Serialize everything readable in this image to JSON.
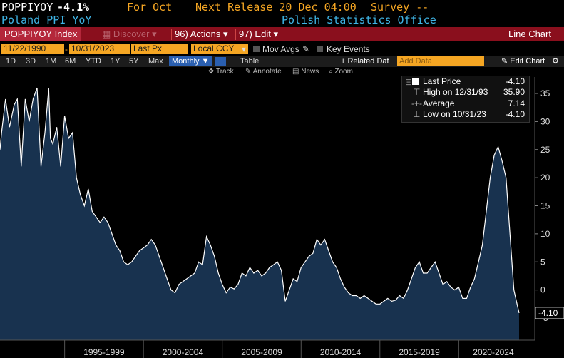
{
  "header": {
    "ticker": "POPPIYOY",
    "change": "-4.1%",
    "period": "For Oct",
    "next_release": "Next Release 20 Dec 04:00",
    "survey": "Survey --",
    "name": "Poland PPI YoY",
    "source": "Polish Statistics Office"
  },
  "toolbar": {
    "index": "POPPIYOY Index",
    "discover": "Discover",
    "discover_num": "",
    "actions_num": "96)",
    "actions": "Actions",
    "edit_num": "97)",
    "edit": "Edit",
    "chart_type": "Line Chart"
  },
  "controls": {
    "start_date": "11/22/1990",
    "end_date": "10/31/2023",
    "field": "Last Px",
    "currency": "Local CCY",
    "mov_avgs": "Mov Avgs",
    "key_events": "Key Events"
  },
  "periods": {
    "items": [
      "1D",
      "3D",
      "1M",
      "6M",
      "YTD",
      "1Y",
      "5Y",
      "Max"
    ],
    "frequency": "Monthly",
    "table": "Table",
    "related": "+ Related Dat",
    "add_data_placeholder": "Add Data",
    "edit_chart": "Edit Chart"
  },
  "tools": {
    "track": "Track",
    "annotate": "Annotate",
    "news": "News",
    "zoom": "Zoom"
  },
  "legend": {
    "last_label": "Last Price",
    "last_value": "-4.10",
    "high_label": "High on 12/31/93",
    "high_value": "35.90",
    "avg_label": "Average",
    "avg_value": "7.14",
    "low_label": "Low on 10/31/23",
    "low_value": "-4.10"
  },
  "colors": {
    "accent_orange": "#f5a623",
    "toolbar_red": "#8a0f1d",
    "title_cyan": "#3fb5e6",
    "area_fill": "#18324f",
    "line": "#ffffff"
  },
  "chart_data": {
    "type": "area",
    "title": "",
    "xlabel": "",
    "ylabel": "",
    "ylim": [
      -5,
      37
    ],
    "yticks": [
      -5,
      0,
      5,
      10,
      15,
      20,
      25,
      30,
      35
    ],
    "x_labels": [
      "1995-1999",
      "2000-2004",
      "2005-2009",
      "2010-2014",
      "2015-2019",
      "2020-2024"
    ],
    "last_label": "-4.10",
    "series": [
      {
        "x": [
          1990.9,
          1991.0,
          1991.25,
          1991.5,
          1991.8,
          1992.0,
          1992.25,
          1992.5,
          1992.75,
          1993.0,
          1993.25,
          1993.5,
          1993.75,
          1993.99,
          1994.1,
          1994.25,
          1994.5,
          1994.75,
          1995.0,
          1995.25,
          1995.5,
          1995.75,
          1996.0,
          1996.25,
          1996.5,
          1996.75,
          1997.0,
          1997.25,
          1997.5,
          1997.75,
          1998.0,
          1998.25,
          1998.5,
          1998.75,
          1999.0,
          1999.25,
          1999.5,
          1999.75,
          2000.0,
          2000.25,
          2000.5,
          2000.75,
          2001.0,
          2001.25,
          2001.5,
          2001.75,
          2002.0,
          2002.25,
          2002.5,
          2002.75,
          2003.0,
          2003.25,
          2003.5,
          2003.75,
          2004.0,
          2004.25,
          2004.5,
          2004.75,
          2005.0,
          2005.25,
          2005.5,
          2005.75,
          2006.0,
          2006.25,
          2006.5,
          2006.75,
          2007.0,
          2007.25,
          2007.5,
          2007.75,
          2008.0,
          2008.25,
          2008.5,
          2008.75,
          2009.0,
          2009.25,
          2009.5,
          2009.75,
          2010.0,
          2010.25,
          2010.5,
          2010.75,
          2011.0,
          2011.25,
          2011.5,
          2011.75,
          2012.0,
          2012.25,
          2012.5,
          2012.75,
          2013.0,
          2013.25,
          2013.5,
          2013.75,
          2014.0,
          2014.25,
          2014.5,
          2014.75,
          2015.0,
          2015.25,
          2015.5,
          2015.75,
          2016.0,
          2016.25,
          2016.5,
          2016.75,
          2017.0,
          2017.25,
          2017.5,
          2017.75,
          2018.0,
          2018.25,
          2018.5,
          2018.75,
          2019.0,
          2019.25,
          2019.5,
          2019.75,
          2020.0,
          2020.25,
          2020.5,
          2020.75,
          2021.0,
          2021.25,
          2021.5,
          2021.75,
          2022.0,
          2022.25,
          2022.5,
          2022.75,
          2023.0,
          2023.25,
          2023.5,
          2023.83
        ],
        "y": [
          25,
          28,
          34,
          29,
          33,
          34,
          22,
          34,
          30,
          34,
          36,
          22,
          28,
          35.9,
          27,
          26,
          29,
          22,
          31,
          27,
          28,
          20,
          17,
          15,
          18,
          14,
          13,
          12,
          13,
          12,
          10,
          8,
          7,
          5,
          4.5,
          5,
          6,
          7,
          7.5,
          8,
          9,
          8,
          6,
          4,
          2,
          0,
          -0.5,
          1,
          1.5,
          2,
          2.5,
          3,
          5,
          4.5,
          9.5,
          8,
          6,
          3,
          1,
          -0.5,
          0.5,
          0.2,
          1,
          3,
          2.5,
          4,
          3,
          3.5,
          2.5,
          3,
          4,
          4.5,
          5,
          3.5,
          -2,
          0,
          2,
          1.5,
          4,
          5,
          6,
          6.5,
          9,
          8,
          9,
          7,
          5,
          4,
          2,
          0.5,
          -0.5,
          -1,
          -1,
          -1.5,
          -1,
          -1.5,
          -2,
          -2.5,
          -2.5,
          -2,
          -1.5,
          -2,
          -1.8,
          -1,
          -1.5,
          0,
          2,
          4,
          5,
          3,
          3,
          4,
          5,
          3,
          1,
          1.5,
          0.5,
          0,
          0.5,
          -1.5,
          -1.5,
          0.5,
          2,
          5,
          8,
          14,
          20,
          24,
          25.5,
          23,
          20,
          10,
          0,
          -4.1
        ]
      }
    ]
  }
}
